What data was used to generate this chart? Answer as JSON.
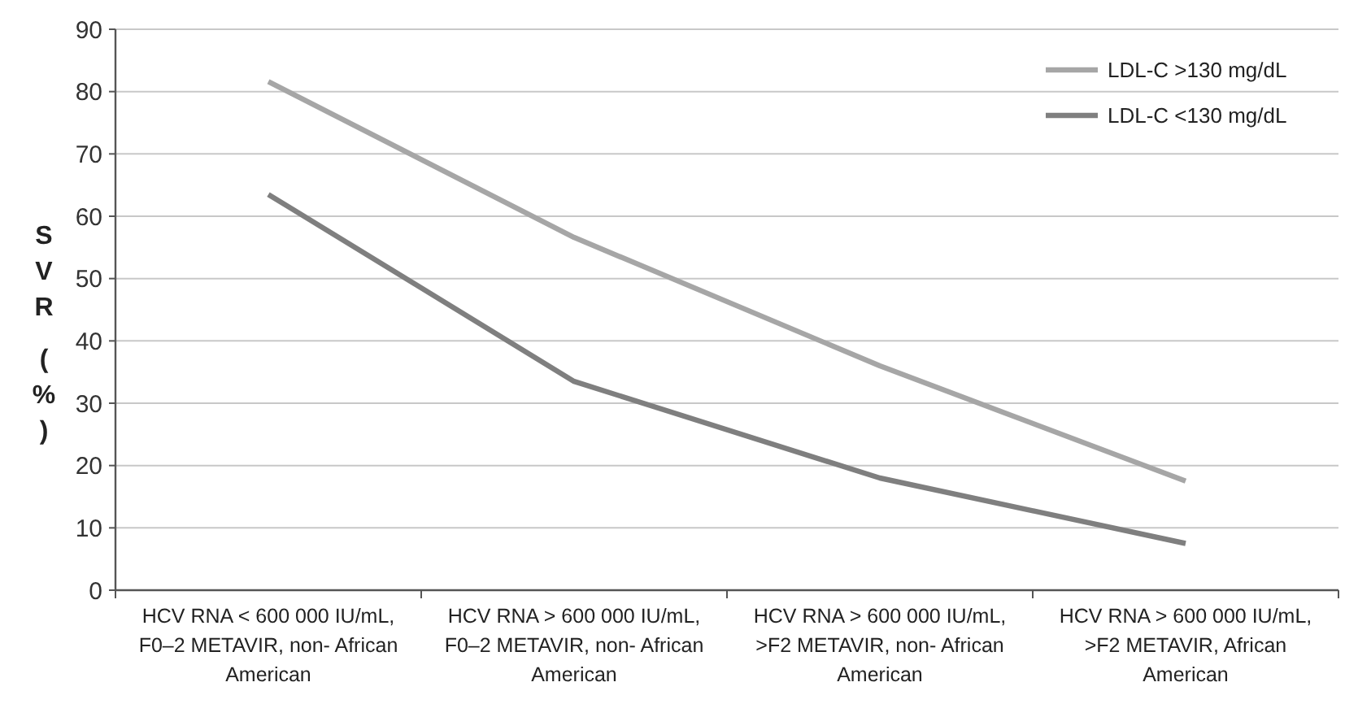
{
  "chart_data": {
    "type": "line",
    "ylabel": "SVR (%)",
    "categories": [
      "HCV RNA < 600 000 IU/mL, F0–2 METAVIR, non- African American",
      "HCV RNA > 600 000 IU/mL, F0–2 METAVIR, non- African American",
      "HCV RNA > 600 000 IU/mL, >F2 METAVIR, non- African American",
      "HCV RNA > 600 000 IU/mL, >F2 METAVIR, African American"
    ],
    "series": [
      {
        "name": "LDL-C >130 mg/dL",
        "color": "#a6a6a6",
        "values": [
          81.6,
          56.6,
          36,
          17.5
        ]
      },
      {
        "name": "LDL-C <130 mg/dL",
        "color": "#7f7f7f",
        "values": [
          63.5,
          33.5,
          18,
          7.5
        ]
      }
    ],
    "ylim": [
      0,
      90
    ],
    "yticks": [
      0,
      10,
      20,
      30,
      40,
      50,
      60,
      70,
      80,
      90
    ],
    "grid": "y",
    "legend": "top right",
    "marker": "none",
    "line_style": "solid"
  }
}
